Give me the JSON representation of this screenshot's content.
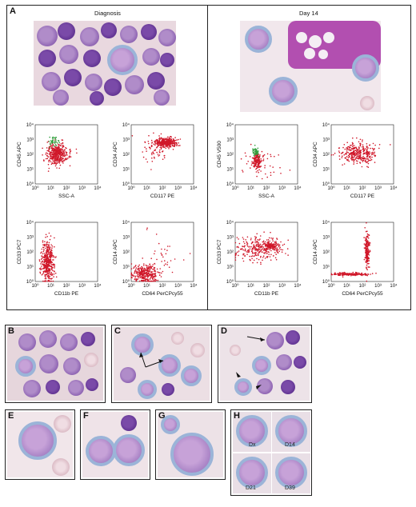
{
  "panels": {
    "a_label": "A",
    "b_label": "B",
    "c_label": "C",
    "d_label": "D",
    "e_label": "E",
    "f_label": "F",
    "g_label": "G",
    "h_label": "H"
  },
  "headers": {
    "diagnosis": "Diagnosis",
    "day14": "Day 14"
  },
  "ticks": {
    "x": [
      "10⁰",
      "10¹",
      "10²",
      "10³",
      "10⁴"
    ],
    "y": [
      "10⁰",
      "10¹",
      "10²",
      "10³",
      "10⁴"
    ]
  },
  "plots": [
    {
      "xlabel": "SSC-A",
      "ylabel": "CD45 APC"
    },
    {
      "xlabel": "CD117 PE",
      "ylabel": "CD34 APC"
    },
    {
      "xlabel": "SSC-A",
      "ylabel": "CD45 V500"
    },
    {
      "xlabel": "CD117 PE",
      "ylabel": "CD34 APC"
    },
    {
      "xlabel": "CD11b PE",
      "ylabel": "CD33 PC7"
    },
    {
      "xlabel": "CD64 PerCPcy55",
      "ylabel": "CD14 APC"
    },
    {
      "xlabel": "CD11b PE",
      "ylabel": "CD33 PC7"
    },
    {
      "xlabel": "CD64 PerCPcy55",
      "ylabel": "CD14 APC"
    }
  ],
  "h_tags": {
    "dx": "Dx",
    "d14": "D14",
    "d21": "D21",
    "d39": "D39"
  },
  "colors": {
    "events": "#d0182a",
    "gate_green": "#2e9e3a",
    "rbc": "#dcbcc6",
    "blast": "#8a5fb0"
  }
}
